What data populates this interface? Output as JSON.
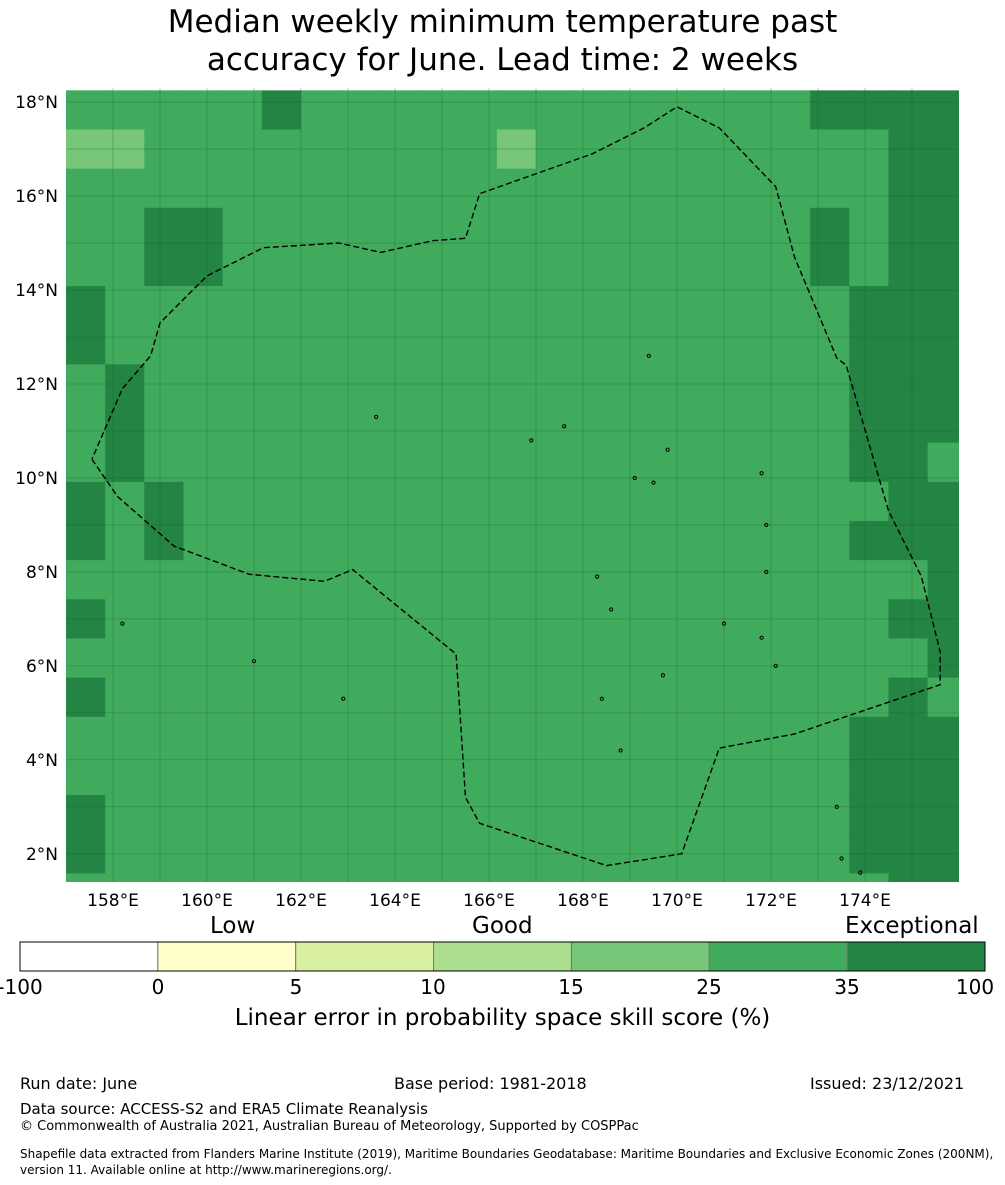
{
  "title": {
    "line1": "Median weekly minimum temperature past",
    "line2": "accuracy for June. Lead time: 2 weeks"
  },
  "map": {
    "lat_labels": [
      "18°N",
      "16°N",
      "14°N",
      "12°N",
      "10°N",
      "8°N",
      "6°N",
      "4°N",
      "2°N"
    ],
    "lon_labels": [
      "158°E",
      "160°E",
      "162°E",
      "164°E",
      "166°E",
      "168°E",
      "170°E",
      "172°E",
      "174°E"
    ],
    "extent": {
      "lon": [
        157.0,
        176.0
      ],
      "lat": [
        1.4,
        18.3
      ]
    },
    "grid": {
      "lon0": 157.0,
      "lat_top": 18.25,
      "cell_deg": 0.8333,
      "rows": [
        "55555655555555555556777",
        "44555555555455555555577",
        "55555555555555555555577",
        "55665555555555555556577",
        "55665555555555555556577",
        "65555555555555555555667",
        "65555555555555555555667",
        "56555555555555555555667",
        "56555555555555555555677",
        "56555555555555555555665",
        "65655555555555555555566",
        "65655555555555555555677",
        "55555555555555555555556",
        "65555555555555555555566",
        "55555555555555555555556",
        "65555555555555555555565",
        "55555555555555555555666",
        "55555555555555555555666",
        "65555555555555555555666",
        "65555555555555555555666",
        "55555555555555555555566"
      ]
    },
    "cell_values": {
      "4": "#78c679",
      "5": "#41ab5d",
      "6": "#238443",
      "7": "#238443"
    },
    "boundary": [
      [
        157.55,
        10.4
      ],
      [
        158.1,
        9.6
      ],
      [
        159.3,
        8.55
      ],
      [
        160.9,
        7.95
      ],
      [
        162.5,
        7.8
      ],
      [
        163.1,
        8.05
      ],
      [
        165.3,
        6.25
      ],
      [
        165.5,
        3.2
      ],
      [
        165.8,
        2.65
      ],
      [
        168.5,
        1.75
      ],
      [
        170.1,
        2.0
      ],
      [
        170.9,
        4.25
      ],
      [
        172.5,
        4.55
      ],
      [
        175.6,
        5.6
      ],
      [
        175.6,
        6.3
      ],
      [
        175.2,
        7.9
      ],
      [
        174.5,
        9.3
      ],
      [
        173.6,
        12.4
      ],
      [
        173.4,
        12.55
      ],
      [
        172.5,
        14.7
      ],
      [
        172.1,
        16.2
      ],
      [
        170.9,
        17.45
      ],
      [
        170.0,
        17.9
      ],
      [
        169.3,
        17.45
      ],
      [
        168.2,
        16.9
      ],
      [
        165.8,
        16.05
      ],
      [
        165.5,
        15.1
      ],
      [
        164.8,
        15.05
      ],
      [
        163.7,
        14.8
      ],
      [
        162.8,
        15.0
      ],
      [
        161.2,
        14.9
      ],
      [
        160.0,
        14.3
      ],
      [
        159.0,
        13.3
      ],
      [
        158.8,
        12.6
      ],
      [
        158.2,
        11.9
      ],
      [
        157.55,
        10.4
      ]
    ]
  },
  "colorbar": {
    "words": {
      "low": "Low",
      "good": "Good",
      "exceptional": "Exceptional"
    },
    "ticks": [
      "-100",
      "0",
      "5",
      "10",
      "15",
      "25",
      "35",
      "100"
    ],
    "colors": [
      "#ffffff",
      "#ffffcc",
      "#d9f0a3",
      "#addd8e",
      "#78c679",
      "#41ab5d",
      "#238443"
    ],
    "label": "Linear error in probability space skill score (%)"
  },
  "footer": {
    "run_date": "Run date: June",
    "base_period": "Base period: 1981-2018",
    "issued": "Issued: 23/12/2021",
    "data_source": "Data source: ACCESS-S2 and ERA5 Climate Reanalysis",
    "copyright": "© Commonwealth of Australia 2021, Australian Bureau of Meteorology, Supported by COSPPac",
    "shapefile_line1": "Shapefile data extracted from Flanders Marine Institute (2019), Maritime Boundaries Geodatabase: Maritime Boundaries and Exclusive Economic Zones (200NM),",
    "shapefile_line2": "version 11. Available online at http://www.marineregions.org/."
  }
}
